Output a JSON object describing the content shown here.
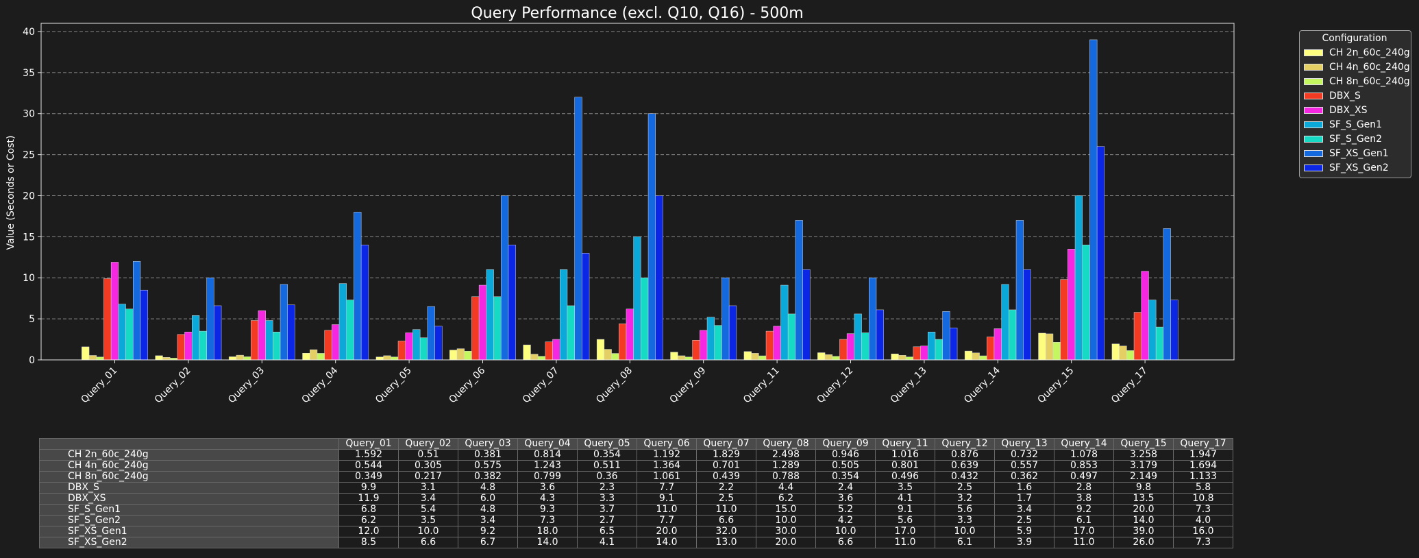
{
  "chart_data": {
    "type": "bar",
    "title": "Query Performance (excl. Q10, Q16) - 500m",
    "xlabel": "",
    "ylabel": "Value (Seconds or Cost)",
    "ylim": [
      0,
      41
    ],
    "yticks": [
      0,
      5,
      10,
      15,
      20,
      25,
      30,
      35,
      40
    ],
    "grid": true,
    "legend_title": "Configuration",
    "legend_position": "outside-top-right",
    "categories": [
      "Query_01",
      "Query_02",
      "Query_03",
      "Query_04",
      "Query_05",
      "Query_06",
      "Query_07",
      "Query_08",
      "Query_09",
      "Query_11",
      "Query_12",
      "Query_13",
      "Query_14",
      "Query_15",
      "Query_17"
    ],
    "series": [
      {
        "name": "CH 2n_60c_240g",
        "color": "#fdfd80",
        "values": [
          1.592,
          0.51,
          0.381,
          0.814,
          0.354,
          1.192,
          1.829,
          2.498,
          0.946,
          1.016,
          0.876,
          0.732,
          1.078,
          3.258,
          1.947
        ]
      },
      {
        "name": "CH 4n_60c_240g",
        "color": "#e3cf63",
        "values": [
          0.544,
          0.305,
          0.575,
          1.243,
          0.511,
          1.364,
          0.701,
          1.289,
          0.505,
          0.801,
          0.639,
          0.557,
          0.853,
          3.179,
          1.694
        ]
      },
      {
        "name": "CH 8n_60c_240g",
        "color": "#c4f65f",
        "values": [
          0.349,
          0.217,
          0.382,
          0.799,
          0.36,
          1.061,
          0.439,
          0.788,
          0.354,
          0.496,
          0.432,
          0.362,
          0.497,
          2.149,
          1.133
        ]
      },
      {
        "name": "DBX_S",
        "color": "#f33a23",
        "values": [
          9.9,
          3.1,
          4.8,
          3.6,
          2.3,
          7.7,
          2.2,
          4.4,
          2.4,
          3.5,
          2.5,
          1.6,
          2.8,
          9.8,
          5.8
        ]
      },
      {
        "name": "DBX_XS",
        "color": "#f527e0",
        "values": [
          11.9,
          3.4,
          6.0,
          4.3,
          3.3,
          9.1,
          2.5,
          6.2,
          3.6,
          4.1,
          3.2,
          1.7,
          3.8,
          13.5,
          10.8
        ]
      },
      {
        "name": "SF_S_Gen1",
        "color": "#0ba9d9",
        "values": [
          6.8,
          5.4,
          4.8,
          9.3,
          3.7,
          11.0,
          11.0,
          15.0,
          5.2,
          9.1,
          5.6,
          3.4,
          9.2,
          20.0,
          7.3
        ]
      },
      {
        "name": "SF_S_Gen2",
        "color": "#17dac4",
        "values": [
          6.2,
          3.5,
          3.4,
          7.3,
          2.7,
          7.7,
          6.6,
          10.0,
          4.2,
          5.6,
          3.3,
          2.5,
          6.1,
          14.0,
          4.0
        ]
      },
      {
        "name": "SF_XS_Gen1",
        "color": "#1469df",
        "values": [
          12.0,
          10.0,
          9.2,
          18.0,
          6.5,
          20.0,
          32.0,
          30.0,
          10.0,
          17.0,
          10.0,
          5.9,
          17.0,
          39.0,
          16.0
        ]
      },
      {
        "name": "SF_XS_Gen2",
        "color": "#0c26e6",
        "values": [
          8.5,
          6.6,
          6.7,
          14.0,
          4.1,
          14.0,
          13.0,
          20.0,
          6.6,
          11.0,
          6.1,
          3.9,
          11.0,
          26.0,
          7.3
        ]
      }
    ],
    "table": {
      "rows": [
        {
          "label": "CH 2n_60c_240g",
          "cells": [
            "1.592",
            "0.51",
            "0.381",
            "0.814",
            "0.354",
            "1.192",
            "1.829",
            "2.498",
            "0.946",
            "1.016",
            "0.876",
            "0.732",
            "1.078",
            "3.258",
            "1.947"
          ]
        },
        {
          "label": "CH 4n_60c_240g",
          "cells": [
            "0.544",
            "0.305",
            "0.575",
            "1.243",
            "0.511",
            "1.364",
            "0.701",
            "1.289",
            "0.505",
            "0.801",
            "0.639",
            "0.557",
            "0.853",
            "3.179",
            "1.694"
          ]
        },
        {
          "label": "CH 8n_60c_240g",
          "cells": [
            "0.349",
            "0.217",
            "0.382",
            "0.799",
            "0.36",
            "1.061",
            "0.439",
            "0.788",
            "0.354",
            "0.496",
            "0.432",
            "0.362",
            "0.497",
            "2.149",
            "1.133"
          ]
        },
        {
          "label": "DBX_S",
          "cells": [
            "9.9",
            "3.1",
            "4.8",
            "3.6",
            "2.3",
            "7.7",
            "2.2",
            "4.4",
            "2.4",
            "3.5",
            "2.5",
            "1.6",
            "2.8",
            "9.8",
            "5.8"
          ]
        },
        {
          "label": "DBX_XS",
          "cells": [
            "11.9",
            "3.4",
            "6.0",
            "4.3",
            "3.3",
            "9.1",
            "2.5",
            "6.2",
            "3.6",
            "4.1",
            "3.2",
            "1.7",
            "3.8",
            "13.5",
            "10.8"
          ]
        },
        {
          "label": "SF_S_Gen1",
          "cells": [
            "6.8",
            "5.4",
            "4.8",
            "9.3",
            "3.7",
            "11.0",
            "11.0",
            "15.0",
            "5.2",
            "9.1",
            "5.6",
            "3.4",
            "9.2",
            "20.0",
            "7.3"
          ]
        },
        {
          "label": "SF_S_Gen2",
          "cells": [
            "6.2",
            "3.5",
            "3.4",
            "7.3",
            "2.7",
            "7.7",
            "6.6",
            "10.0",
            "4.2",
            "5.6",
            "3.3",
            "2.5",
            "6.1",
            "14.0",
            "4.0"
          ]
        },
        {
          "label": "SF_XS_Gen1",
          "cells": [
            "12.0",
            "10.0",
            "9.2",
            "18.0",
            "6.5",
            "20.0",
            "32.0",
            "30.0",
            "10.0",
            "17.0",
            "10.0",
            "5.9",
            "17.0",
            "39.0",
            "16.0"
          ]
        },
        {
          "label": "SF_XS_Gen2",
          "cells": [
            "8.5",
            "6.6",
            "6.7",
            "14.0",
            "4.1",
            "14.0",
            "13.0",
            "20.0",
            "6.6",
            "11.0",
            "6.1",
            "3.9",
            "11.0",
            "26.0",
            "7.3"
          ]
        }
      ]
    }
  }
}
